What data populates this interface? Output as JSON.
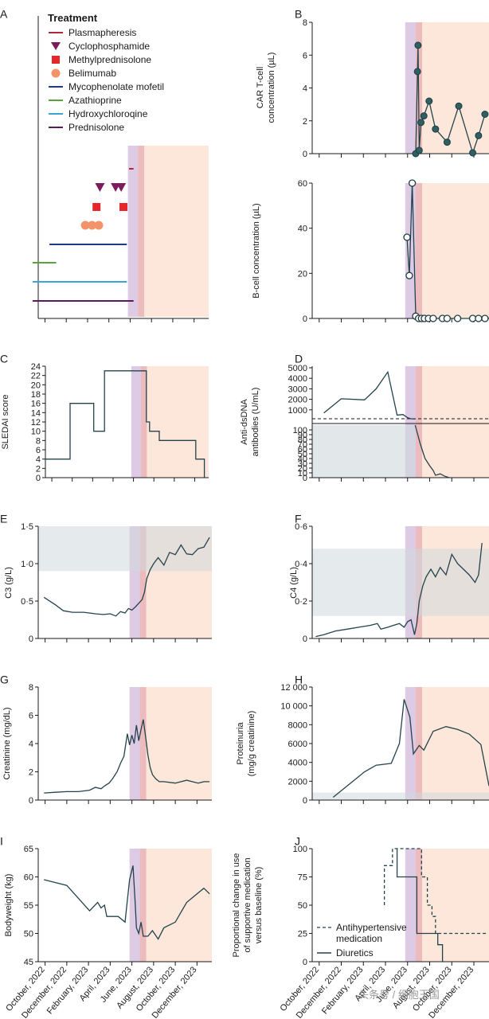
{
  "colors": {
    "line": "#24434a",
    "marker_fill": "#2f5f63",
    "purple_band": "#d9c8e6",
    "red_band": "#e9b3b7",
    "peach_band": "#fbe3d4",
    "ref_band": "#cfd9dc",
    "plasmapheresis": "#b2263a",
    "cyclophosphamide": "#7b1d5a",
    "methylprednisolone": "#e5262a",
    "belimumab": "#f3936a",
    "mycophenolate": "#1f3a8a",
    "azathioprine": "#5aa33a",
    "hydroxychloroquine": "#3aa6d6",
    "prednisolone": "#5a1a5e"
  },
  "x_axis": {
    "tick_labels": [
      "October, 2022",
      "December, 2022",
      "February, 2023",
      "April, 2023",
      "June, 2023",
      "August, 2023",
      "October, 2023",
      "December, 2023"
    ]
  },
  "watermark": "头条号 / 细胞王国",
  "chart_data": [
    {
      "panel": "A",
      "type": "timeline",
      "legend_title": "Treatment",
      "legend": [
        {
          "name": "Plasmapheresis",
          "marker": "line",
          "color": "#b2263a"
        },
        {
          "name": "Cyclophosphamide",
          "marker": "triangle",
          "color": "#7b1d5a"
        },
        {
          "name": "Methylprednisolone",
          "marker": "square",
          "color": "#e5262a"
        },
        {
          "name": "Belimumab",
          "marker": "circle",
          "color": "#f3936a"
        },
        {
          "name": "Mycophenolate mofetil",
          "marker": "line",
          "color": "#1f3a8a"
        },
        {
          "name": "Azathioprine",
          "marker": "line",
          "color": "#5aa33a"
        },
        {
          "name": "Hydroxychloroqine",
          "marker": "line",
          "color": "#3aa6d6"
        },
        {
          "name": "Prednisolone",
          "marker": "line",
          "color": "#5a1a5e"
        }
      ],
      "bars": [
        {
          "name": "Plasmapheresis",
          "start": 8.1,
          "end": 8.5
        },
        {
          "name": "Mycophenolate mofetil",
          "start": 1.0,
          "end": 7.9
        },
        {
          "name": "Azathioprine",
          "start": -0.5,
          "end": 1.6
        },
        {
          "name": "Hydroxychloroqine",
          "start": -0.5,
          "end": 7.9
        },
        {
          "name": "Prednisolone",
          "start": -0.5,
          "end": 8.5
        }
      ],
      "points": [
        {
          "name": "Cyclophosphamide",
          "x": [
            5.5,
            6.9,
            7.4
          ]
        },
        {
          "name": "Methylprednisolone",
          "x": [
            5.2,
            7.6
          ]
        },
        {
          "name": "Belimumab",
          "x": [
            4.2,
            4.8,
            5.4
          ]
        }
      ]
    },
    {
      "panel": "B",
      "type": "line",
      "ylabel": "CAR T-cell concentration (µL)",
      "ylim": [
        0,
        8
      ],
      "yticks": [
        0,
        2,
        4,
        6,
        8
      ],
      "x": [
        8.9,
        9.05,
        9.1,
        9.2,
        9.35,
        9.6,
        10.05,
        10.6,
        11.6,
        12.6,
        13.8,
        14.3,
        14.85
      ],
      "y": [
        0,
        5.0,
        6.6,
        0.2,
        1.9,
        2.3,
        3.2,
        1.5,
        0.7,
        2.9,
        0.05,
        1.1,
        2.4
      ]
    },
    {
      "panel": "B2",
      "type": "line",
      "ylabel": "B-cell concentration (µL)",
      "ylim": [
        0,
        60
      ],
      "yticks": [
        0,
        20,
        40,
        60
      ],
      "x": [
        8.15,
        8.35,
        8.6,
        8.9,
        9.15,
        9.4,
        9.65,
        10.0,
        10.4,
        11.2,
        11.6,
        12.5,
        13.8,
        14.3,
        14.85
      ],
      "y": [
        36,
        19,
        60,
        1,
        0,
        0,
        0,
        0,
        0,
        0,
        0,
        0,
        0,
        0,
        0
      ]
    },
    {
      "panel": "C",
      "type": "step",
      "ylabel": "SLEDAI score",
      "ylim": [
        0,
        24
      ],
      "yticks": [
        0,
        2,
        4,
        6,
        8,
        10,
        12,
        14,
        16,
        18,
        20,
        22,
        24
      ],
      "x": [
        0,
        2.3,
        2.3,
        4.5,
        4.5,
        5.5,
        5.5,
        9.4,
        9.4,
        9.7,
        9.7,
        10.6,
        10.6,
        14.0,
        14.0,
        14.8,
        14.8
      ],
      "y": [
        4,
        4,
        16,
        16,
        10,
        10,
        23,
        23,
        12,
        12,
        10,
        10,
        8,
        8,
        4,
        4,
        0
      ]
    },
    {
      "panel": "D",
      "type": "line",
      "ylabel": "Anti-dsDNA antibodies (U/mL)",
      "upper": {
        "yticks": [
          1000,
          2000,
          3000,
          4000,
          5000
        ],
        "ylim": [
          0,
          5000
        ],
        "x": [
          1.0,
          2.5,
          4.5,
          5.5,
          6.5,
          7.3,
          7.8,
          8.2,
          8.5,
          8.85
        ],
        "y": [
          700,
          2050,
          1950,
          3000,
          4600,
          500,
          550,
          250,
          150,
          120
        ]
      },
      "lower": {
        "yticks": [
          0,
          10,
          20,
          30,
          40,
          50,
          60,
          70,
          80,
          90,
          100
        ],
        "ylim": [
          0,
          110
        ],
        "x": [
          8.85,
          9.3,
          9.7,
          10.1,
          10.4,
          10.6,
          11.0,
          11.4,
          11.8
        ],
        "y": [
          110,
          70,
          40,
          25,
          15,
          5,
          8,
          3,
          0
        ]
      },
      "reference_band": [
        0,
        100
      ]
    },
    {
      "panel": "E",
      "type": "line",
      "ylabel": "C3 (g/L)",
      "ylim": [
        0,
        1.5
      ],
      "yticks": [
        0,
        0.5,
        1.0,
        1.5
      ],
      "ytick_labels": [
        "0",
        "0·5",
        "1·0",
        "1·5"
      ],
      "reference_band": [
        0.9,
        1.5
      ],
      "x": [
        0.5,
        1.5,
        2.2,
        3.0,
        4.0,
        5.0,
        5.7,
        6.3,
        6.8,
        7.2,
        7.6,
        7.9,
        8.2,
        8.5,
        8.8,
        9.1,
        9.3,
        9.5,
        9.8,
        10.1,
        10.5,
        11.0,
        11.5,
        12.0,
        12.5,
        13.0,
        13.5,
        14.0,
        14.5,
        15.0
      ],
      "y": [
        0.55,
        0.45,
        0.37,
        0.35,
        0.35,
        0.33,
        0.32,
        0.33,
        0.3,
        0.36,
        0.34,
        0.4,
        0.38,
        0.42,
        0.47,
        0.52,
        0.62,
        0.8,
        0.92,
        1.0,
        1.08,
        0.98,
        1.15,
        1.12,
        1.25,
        1.13,
        1.12,
        1.2,
        1.22,
        1.35
      ]
    },
    {
      "panel": "F",
      "type": "line",
      "ylabel": "C4 (g/L)",
      "ylim": [
        0,
        0.6
      ],
      "yticks": [
        0,
        0.2,
        0.4,
        0.6
      ],
      "ytick_labels": [
        "0",
        "0·2",
        "0·4",
        "0·6"
      ],
      "reference_band": [
        0.12,
        0.48
      ],
      "x": [
        0.3,
        1.0,
        2.0,
        3.0,
        4.0,
        5.0,
        5.6,
        5.9,
        6.5,
        7.0,
        7.5,
        7.9,
        8.2,
        8.5,
        8.8,
        9.0,
        9.2,
        9.5,
        9.8,
        10.2,
        10.6,
        11.0,
        11.5,
        12.0,
        12.5,
        13.0,
        13.5,
        14.0,
        14.3,
        14.6
      ],
      "y": [
        0.01,
        0.02,
        0.04,
        0.05,
        0.06,
        0.07,
        0.08,
        0.05,
        0.06,
        0.07,
        0.08,
        0.06,
        0.09,
        0.1,
        0.02,
        0.08,
        0.2,
        0.28,
        0.33,
        0.37,
        0.33,
        0.38,
        0.34,
        0.45,
        0.4,
        0.37,
        0.34,
        0.3,
        0.34,
        0.51
      ]
    },
    {
      "panel": "G",
      "type": "line",
      "ylabel": "Creatinine (mg/dL)",
      "ylim": [
        0,
        8
      ],
      "yticks": [
        0,
        2,
        4,
        6,
        8
      ],
      "x": [
        0.5,
        1.5,
        2.5,
        3.5,
        4.5,
        5.0,
        5.5,
        5.8,
        6.2,
        6.5,
        6.9,
        7.2,
        7.5,
        7.8,
        8.0,
        8.2,
        8.4,
        8.6,
        8.8,
        9.0,
        9.2,
        9.4,
        9.6,
        9.8,
        10.0,
        10.3,
        10.6,
        11.0,
        12.0,
        13.0,
        14.0,
        14.5,
        15.0
      ],
      "y": [
        0.5,
        0.55,
        0.6,
        0.6,
        0.7,
        0.9,
        0.8,
        1.0,
        1.2,
        1.5,
        2.0,
        2.6,
        3.1,
        4.7,
        3.9,
        4.6,
        4.0,
        5.3,
        4.2,
        5.0,
        5.7,
        4.5,
        3.2,
        2.3,
        1.8,
        1.5,
        1.3,
        1.3,
        1.2,
        1.4,
        1.2,
        1.3,
        1.3
      ]
    },
    {
      "panel": "H",
      "type": "line",
      "ylabel": "Proteinuria (mg/g creatinine)",
      "ylim": [
        0,
        12000
      ],
      "yticks": [
        0,
        2000,
        4000,
        6000,
        8000,
        10000,
        12000
      ],
      "ytick_labels": [
        "0",
        "2000",
        "4000",
        "6000",
        "8000",
        "10 000",
        "12 000"
      ],
      "reference_band": [
        0,
        800
      ],
      "x": [
        1.8,
        4.5,
        5.5,
        6.8,
        7.5,
        7.9,
        8.4,
        8.7,
        9.2,
        9.6,
        10.4,
        11.5,
        12.5,
        13.5,
        14.5,
        15.2
      ],
      "y": [
        300,
        3000,
        3700,
        3900,
        6000,
        10700,
        8800,
        4900,
        5800,
        5300,
        7300,
        7800,
        7500,
        7000,
        5900,
        1500
      ]
    },
    {
      "panel": "I",
      "type": "line",
      "ylabel": "Bodyweight (kg)",
      "ylim": [
        45,
        65
      ],
      "yticks": [
        45,
        50,
        55,
        60,
        65
      ],
      "x": [
        0.5,
        2.5,
        4.5,
        5.2,
        5.5,
        5.8,
        6.0,
        7.0,
        7.6,
        8.0,
        8.3,
        8.5,
        8.6,
        8.8,
        9.0,
        9.2,
        9.6,
        10.0,
        10.5,
        11.0,
        12.0,
        13.0,
        14.5,
        15.0
      ],
      "y": [
        59.5,
        58.5,
        54.0,
        55.5,
        54.5,
        55.0,
        53.0,
        53.0,
        52.0,
        59.5,
        62.0,
        55.0,
        51.0,
        50.0,
        52.0,
        49.5,
        49.5,
        50.5,
        49.0,
        51.0,
        52.0,
        55.5,
        58.0,
        57.0
      ]
    },
    {
      "panel": "J",
      "type": "step",
      "ylabel": "Proportional change in use of supportive medication versus baseline (%)",
      "ylim": [
        0,
        100
      ],
      "yticks": [
        0,
        25,
        50,
        75,
        100
      ],
      "series": [
        {
          "name": "Antihypertensive medication",
          "dashed": true,
          "x": [
            6.2,
            6.2,
            6.9,
            6.9,
            9.4,
            9.4,
            9.9,
            9.9,
            10.3,
            10.3,
            10.6,
            10.6,
            15.0
          ],
          "y": [
            50,
            85,
            85,
            100,
            100,
            75,
            75,
            50,
            50,
            40,
            40,
            25,
            25
          ]
        },
        {
          "name": "Diuretics",
          "dashed": false,
          "x": [
            7.3,
            7.3,
            9.0,
            9.0,
            10.8,
            10.8,
            11.2,
            11.2,
            11.4
          ],
          "y": [
            100,
            75,
            75,
            25,
            25,
            15,
            15,
            0,
            0
          ]
        }
      ]
    }
  ],
  "panels": [
    {
      "id": "A",
      "letter": "A"
    },
    {
      "id": "B",
      "letter": "B"
    },
    {
      "id": "B2",
      "letter": ""
    },
    {
      "id": "C",
      "letter": "C"
    },
    {
      "id": "D",
      "letter": "D"
    },
    {
      "id": "E",
      "letter": "E"
    },
    {
      "id": "F",
      "letter": "F"
    },
    {
      "id": "G",
      "letter": "G"
    },
    {
      "id": "H",
      "letter": "H"
    },
    {
      "id": "I",
      "letter": "I"
    },
    {
      "id": "J",
      "letter": "J"
    }
  ]
}
